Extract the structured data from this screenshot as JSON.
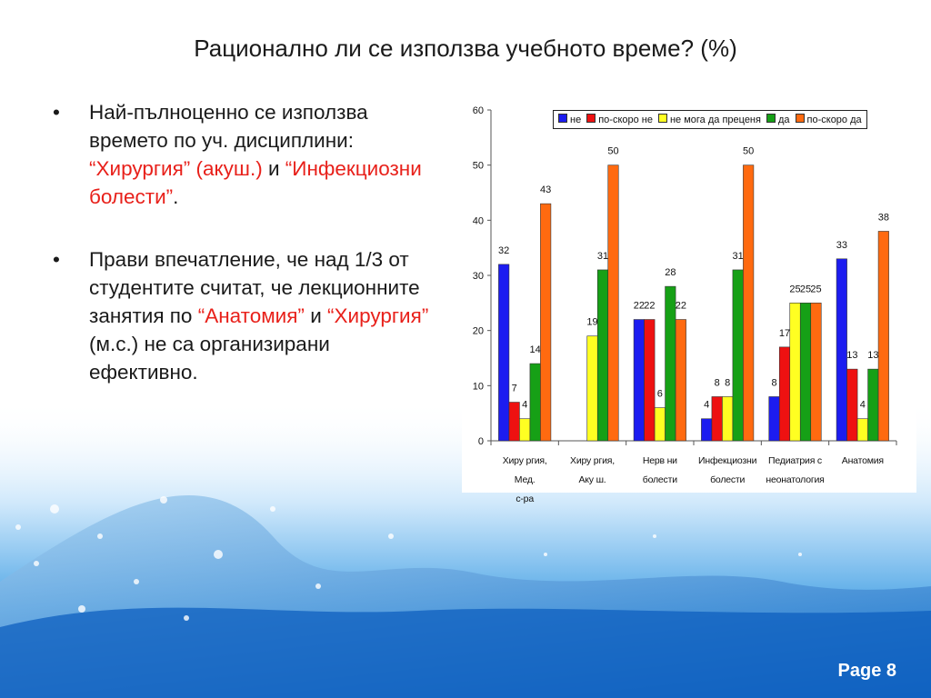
{
  "slide": {
    "title": "Рационално ли се използва учебното време? (%)",
    "page": "Page 8"
  },
  "bullets": [
    {
      "mark": "•",
      "parts": [
        {
          "text": "Най-пълноценно се използва времето по уч. дисциплини: ",
          "color": "#1a1a1a"
        },
        {
          "text": "“Хирургия” (акуш.)",
          "color": "#e8201a"
        },
        {
          "text": " и ",
          "color": "#1a1a1a"
        },
        {
          "text": "“Инфекциозни болести”",
          "color": "#e8201a"
        },
        {
          "text": ".",
          "color": "#1a1a1a"
        }
      ]
    },
    {
      "mark": "•",
      "parts": [
        {
          "text": "Прави впечатление, че над 1/3 от студентите считат, че лекционните занятия по ",
          "color": "#1a1a1a"
        },
        {
          "text": "“Анатомия”",
          "color": "#e8201a"
        },
        {
          "text": " и ",
          "color": "#1a1a1a"
        },
        {
          "text": "“Хирургия”",
          "color": "#e8201a"
        },
        {
          "text": " (м.с.) не са организирани ефективно.",
          "color": "#1a1a1a"
        }
      ]
    }
  ],
  "chart_data": {
    "type": "bar",
    "title": "",
    "xlabel": "",
    "ylabel": "",
    "ylim": [
      0,
      60
    ],
    "yticks": [
      0,
      10,
      20,
      30,
      40,
      50,
      60
    ],
    "grid": false,
    "legend_position": "top",
    "categories": [
      [
        "Хиру ргия, Мед.",
        "с-ра"
      ],
      [
        "Хиру ргия,",
        "Аку ш."
      ],
      [
        "Нерв ни",
        "болести"
      ],
      [
        "Инфекциозни",
        "болести"
      ],
      [
        "Педиатрия с",
        "неонатология"
      ],
      [
        "Анатомия"
      ]
    ],
    "series": [
      {
        "name": "не",
        "color": "#1c1cf0",
        "values": [
          32,
          null,
          22,
          4,
          8,
          33
        ]
      },
      {
        "name": "по-скоро не",
        "color": "#ee1111",
        "values": [
          7,
          null,
          22,
          8,
          17,
          13
        ]
      },
      {
        "name": "не мога да преценя",
        "color": "#ffff22",
        "values": [
          4,
          19,
          6,
          8,
          25,
          4
        ]
      },
      {
        "name": "да",
        "color": "#16a016",
        "values": [
          14,
          31,
          28,
          31,
          25,
          13
        ]
      },
      {
        "name": "по-скоро да",
        "color": "#ff6a10",
        "values": [
          43,
          50,
          22,
          50,
          25,
          38
        ]
      }
    ]
  }
}
